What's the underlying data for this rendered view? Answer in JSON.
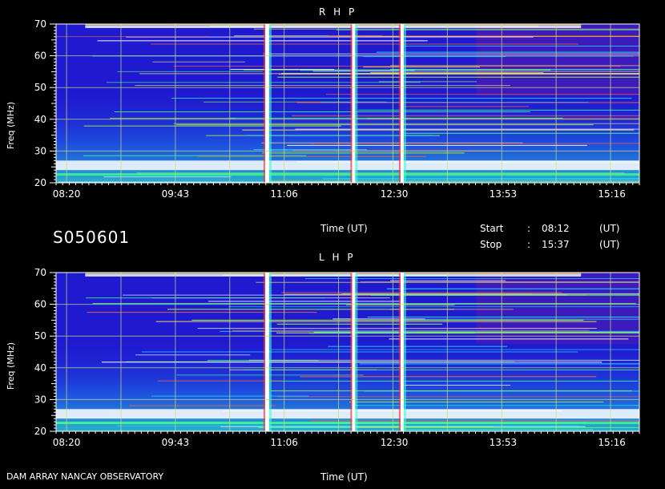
{
  "chart_data": [
    {
      "type": "heatmap",
      "title": "R H P",
      "xlabel": "Time (UT)",
      "ylabel": "Freq (MHz)",
      "xlim": [
        "08:12",
        "15:37"
      ],
      "ylim": [
        20,
        70
      ],
      "x_tick_labels": [
        "08:20",
        "09:43",
        "11:06",
        "12:30",
        "13:53",
        "15:16"
      ],
      "y_tick_labels": [
        "20",
        "30",
        "40",
        "50",
        "60",
        "70"
      ],
      "grid": true,
      "bursts": [
        "10:53",
        "11:59",
        "12:36"
      ]
    },
    {
      "type": "heatmap",
      "title": "L H P",
      "xlabel": "Time (UT)",
      "ylabel": "Freq (MHz)",
      "xlim": [
        "08:12",
        "15:37"
      ],
      "ylim": [
        20,
        70
      ],
      "x_tick_labels": [
        "08:20",
        "09:43",
        "11:06",
        "12:30",
        "13:53",
        "15:16"
      ],
      "y_tick_labels": [
        "20",
        "30",
        "40",
        "50",
        "60",
        "70"
      ],
      "grid": true,
      "bursts": [
        "10:53",
        "11:59",
        "12:36"
      ]
    }
  ],
  "info": {
    "id": "S050601",
    "start_label": "Start",
    "stop_label": "Stop",
    "start_time": "08:12",
    "stop_time": "15:37",
    "colon": ":",
    "unit": "(UT)",
    "footer": "DAM ARRAY   NANCAY OBSERVATORY"
  },
  "colors": {
    "background": "#000000",
    "grid": "#c8e07a",
    "text": "#ffffff"
  }
}
